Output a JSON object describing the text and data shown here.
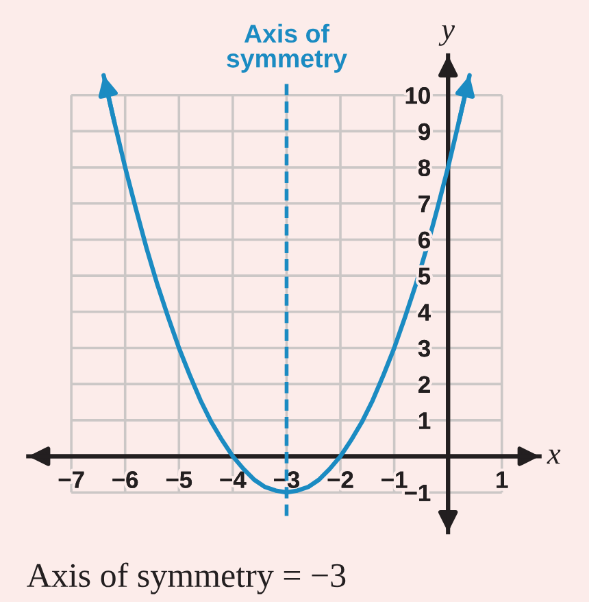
{
  "chart_data": {
    "type": "line",
    "series": [
      {
        "color": "#1b8bc2",
        "x": [
          -6.4,
          -6.2,
          -6.0,
          -5.8,
          -5.6,
          -5.4,
          -5.2,
          -5.0,
          -4.8,
          -4.6,
          -4.4,
          -4.2,
          -4.0,
          -3.8,
          -3.6,
          -3.4,
          -3.2,
          -3.0,
          -2.8,
          -2.6,
          -2.4,
          -2.2,
          -2.0,
          -1.8,
          -1.6,
          -1.4,
          -1.2,
          -1.0,
          -0.8,
          -0.6,
          -0.4,
          -0.2,
          0.0,
          0.2,
          0.4
        ],
        "values": [
          10.55,
          9.25,
          8,
          6.85,
          5.75,
          4.75,
          3.85,
          3,
          2.25,
          1.55,
          0.95,
          0.45,
          0,
          -0.35,
          -0.65,
          -0.85,
          -0.95,
          -1,
          -0.95,
          -0.85,
          -0.65,
          -0.35,
          0,
          0.45,
          0.95,
          1.55,
          2.25,
          3,
          3.85,
          4.75,
          5.75,
          6.85,
          8,
          9.25,
          10.55
        ]
      }
    ],
    "xlabel": "x",
    "ylabel": "y",
    "xlim": [
      -7.8,
      1.7
    ],
    "ylim": [
      -2.1,
      11.1
    ],
    "xticks": [
      {
        "value": -7,
        "label": "−7"
      },
      {
        "value": -6,
        "label": "−6"
      },
      {
        "value": -5,
        "label": "−5"
      },
      {
        "value": -4,
        "label": "−4"
      },
      {
        "value": -3,
        "label": "−3"
      },
      {
        "value": -2,
        "label": "−2"
      },
      {
        "value": -1,
        "label": "−1"
      },
      {
        "value": 0,
        "label": null
      },
      1
    ],
    "yticks": [
      {
        "value": -1,
        "label": "−1"
      },
      {
        "value": 0,
        "label": null
      },
      1,
      2,
      3,
      4,
      5,
      6,
      7,
      8,
      9,
      10
    ],
    "grid": true,
    "ref_lines": [
      {
        "axis": "x",
        "value": -3,
        "label": "Axis of\nsymmetry",
        "color": "#1b8bc2",
        "line_style": "dashed"
      }
    ],
    "annotations": [
      "Axis of symmetry = −3"
    ]
  }
}
